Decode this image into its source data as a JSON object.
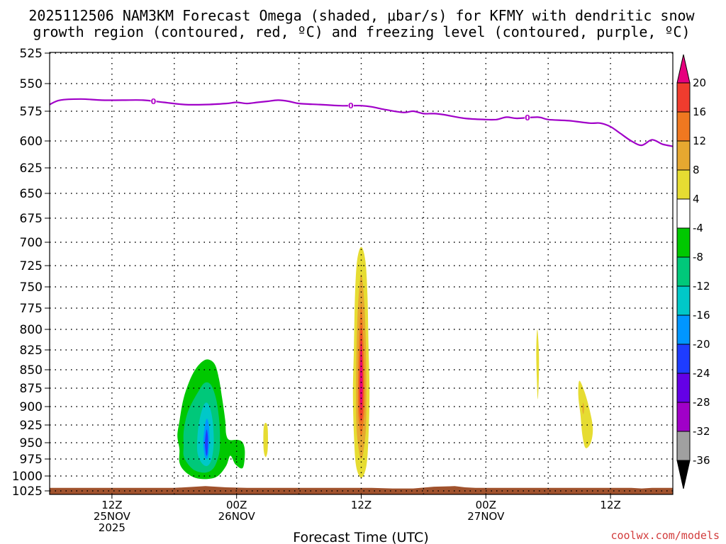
{
  "chart_data": {
    "type": "contour",
    "title_line1": "2025112506 NAM3KM Forecast Omega (shaded, μbar/s) for KFMY with dendritic snow",
    "title_line2": "growth region (contoured, red, ºC) and freezing level (contoured, purple, ºC)",
    "xlabel": "Forecast Time (UTC)",
    "credit": "coolwx.com/models",
    "x_hours": [
      0,
      60
    ],
    "y_levels": [
      525,
      550,
      575,
      600,
      625,
      650,
      675,
      700,
      725,
      750,
      775,
      800,
      825,
      850,
      875,
      900,
      925,
      950,
      975,
      1000,
      1025
    ],
    "x_ticks": [
      {
        "hour": 6,
        "lines": [
          "12Z",
          "25NOV",
          "2025"
        ]
      },
      {
        "hour": 18,
        "lines": [
          "00Z",
          "26NOV"
        ]
      },
      {
        "hour": 30,
        "lines": [
          "12Z"
        ]
      },
      {
        "hour": 42,
        "lines": [
          "00Z",
          "27NOV"
        ]
      },
      {
        "hour": 54,
        "lines": [
          "12Z"
        ]
      }
    ],
    "colorbar": {
      "labels": [
        "20",
        "16",
        "12",
        "8",
        "4",
        "-4",
        "-8",
        "-12",
        "-16",
        "-20",
        "-24",
        "-28",
        "-32",
        "-36"
      ],
      "colors": [
        "#e6007e",
        "#f03c2e",
        "#f07820",
        "#e6a830",
        "#e6dc32",
        "#ffffff",
        "#00c800",
        "#00c87a",
        "#00c8c8",
        "#0096ff",
        "#1e3cff",
        "#6400e6",
        "#a000c8",
        "#a0a0a0"
      ]
    },
    "freezing_level": {
      "label": "0",
      "label_hours": [
        10,
        29,
        46
      ],
      "points": [
        [
          0,
          569
        ],
        [
          1,
          565
        ],
        [
          3,
          564
        ],
        [
          5,
          565
        ],
        [
          7,
          565
        ],
        [
          9,
          565
        ],
        [
          11,
          567
        ],
        [
          13,
          569
        ],
        [
          15,
          569
        ],
        [
          17,
          568
        ],
        [
          18,
          567
        ],
        [
          19,
          568
        ],
        [
          20,
          567
        ],
        [
          21,
          566
        ],
        [
          22,
          565
        ],
        [
          23,
          566
        ],
        [
          24,
          568
        ],
        [
          26,
          569
        ],
        [
          28,
          570
        ],
        [
          29,
          570
        ],
        [
          30,
          570
        ],
        [
          31,
          571
        ],
        [
          32,
          573
        ],
        [
          34,
          576
        ],
        [
          35,
          575
        ],
        [
          36,
          577
        ],
        [
          37,
          577
        ],
        [
          38,
          578
        ],
        [
          40,
          581
        ],
        [
          42,
          582
        ],
        [
          43,
          582
        ],
        [
          44,
          580
        ],
        [
          45,
          581
        ],
        [
          47,
          580
        ],
        [
          48,
          582
        ],
        [
          50,
          583
        ],
        [
          52,
          585
        ],
        [
          53,
          585
        ],
        [
          54,
          588
        ],
        [
          55,
          594
        ],
        [
          56,
          600
        ],
        [
          57,
          604
        ],
        [
          58,
          599
        ],
        [
          59,
          603
        ],
        [
          60,
          605
        ]
      ]
    },
    "terrain_pressure": [
      [
        0,
        1020
      ],
      [
        12,
        1020
      ],
      [
        15,
        1017
      ],
      [
        17,
        1019
      ],
      [
        19,
        1020
      ],
      [
        31,
        1020
      ],
      [
        33,
        1021
      ],
      [
        35,
        1021
      ],
      [
        37,
        1018
      ],
      [
        39,
        1017
      ],
      [
        40,
        1019
      ],
      [
        41,
        1020
      ],
      [
        56,
        1020
      ],
      [
        57,
        1021
      ],
      [
        58,
        1020
      ],
      [
        60,
        1020
      ]
    ],
    "shades": [
      {
        "name": "neg-green",
        "color": "#00c800",
        "points": [
          [
            12.5,
            960
          ],
          [
            12.3,
            940
          ],
          [
            12.5,
            920
          ],
          [
            12.8,
            895
          ],
          [
            13.2,
            875
          ],
          [
            13.8,
            855
          ],
          [
            14.5,
            842
          ],
          [
            15.2,
            837
          ],
          [
            15.9,
            843
          ],
          [
            16.3,
            862
          ],
          [
            16.6,
            888
          ],
          [
            16.9,
            918
          ],
          [
            17.0,
            938
          ],
          [
            17.3,
            946
          ],
          [
            18.1,
            946
          ],
          [
            18.6,
            950
          ],
          [
            18.8,
            965
          ],
          [
            18.6,
            988
          ],
          [
            17.9,
            983
          ],
          [
            17.4,
            970
          ],
          [
            17.0,
            985
          ],
          [
            16.2,
            1000
          ],
          [
            15.2,
            1005
          ],
          [
            14.0,
            1003
          ],
          [
            13.0,
            993
          ],
          [
            12.5,
            980
          ]
        ]
      },
      {
        "name": "neg-teal",
        "color": "#00c87a",
        "points": [
          [
            12.9,
            955
          ],
          [
            12.9,
            935
          ],
          [
            13.2,
            912
          ],
          [
            13.7,
            895
          ],
          [
            14.3,
            880
          ],
          [
            14.9,
            868
          ],
          [
            15.5,
            870
          ],
          [
            16.0,
            888
          ],
          [
            16.3,
            915
          ],
          [
            16.4,
            945
          ],
          [
            16.3,
            968
          ],
          [
            15.8,
            988
          ],
          [
            15.0,
            995
          ],
          [
            14.0,
            992
          ],
          [
            13.3,
            982
          ],
          [
            12.9,
            970
          ]
        ]
      },
      {
        "name": "neg-cyan",
        "color": "#00c8c8",
        "points": [
          [
            14.2,
            955
          ],
          [
            14.3,
            930
          ],
          [
            14.6,
            908
          ],
          [
            15.0,
            895
          ],
          [
            15.4,
            900
          ],
          [
            15.7,
            920
          ],
          [
            15.8,
            950
          ],
          [
            15.6,
            975
          ],
          [
            15.2,
            985
          ],
          [
            14.7,
            982
          ],
          [
            14.3,
            970
          ]
        ]
      },
      {
        "name": "neg-lightblue",
        "color": "#0096ff",
        "points": [
          [
            14.8,
            950
          ],
          [
            14.9,
            930
          ],
          [
            15.1,
            917
          ],
          [
            15.3,
            922
          ],
          [
            15.4,
            945
          ],
          [
            15.3,
            968
          ],
          [
            15.1,
            975
          ],
          [
            14.9,
            968
          ]
        ]
      },
      {
        "name": "neg-blue",
        "color": "#1e3cff",
        "points": [
          [
            14.95,
            950
          ],
          [
            15.05,
            935
          ],
          [
            15.15,
            932
          ],
          [
            15.25,
            945
          ],
          [
            15.2,
            965
          ],
          [
            15.1,
            970
          ],
          [
            15.0,
            962
          ]
        ]
      },
      {
        "name": "pos-yellow-main",
        "color": "#e6dc32",
        "points": [
          [
            30.0,
            705
          ],
          [
            30.4,
            720
          ],
          [
            30.6,
            760
          ],
          [
            30.7,
            820
          ],
          [
            30.8,
            880
          ],
          [
            30.7,
            940
          ],
          [
            30.5,
            985
          ],
          [
            30.0,
            1003
          ],
          [
            29.5,
            985
          ],
          [
            29.3,
            940
          ],
          [
            29.2,
            880
          ],
          [
            29.3,
            820
          ],
          [
            29.4,
            760
          ],
          [
            29.6,
            720
          ]
        ]
      },
      {
        "name": "pos-gold",
        "color": "#e6a830",
        "points": [
          [
            30.0,
            735
          ],
          [
            30.3,
            770
          ],
          [
            30.45,
            820
          ],
          [
            30.5,
            880
          ],
          [
            30.45,
            930
          ],
          [
            30.2,
            965
          ],
          [
            30.0,
            975
          ],
          [
            29.8,
            965
          ],
          [
            29.55,
            930
          ],
          [
            29.5,
            880
          ],
          [
            29.55,
            820
          ],
          [
            29.7,
            770
          ]
        ]
      },
      {
        "name": "pos-orange",
        "color": "#f07820",
        "points": [
          [
            30.0,
            770
          ],
          [
            30.2,
            810
          ],
          [
            30.3,
            860
          ],
          [
            30.3,
            905
          ],
          [
            30.1,
            935
          ],
          [
            30.0,
            940
          ],
          [
            29.9,
            935
          ],
          [
            29.7,
            905
          ],
          [
            29.7,
            860
          ],
          [
            29.8,
            810
          ]
        ]
      },
      {
        "name": "pos-red",
        "color": "#f03c2e",
        "points": [
          [
            30.0,
            795
          ],
          [
            30.15,
            840
          ],
          [
            30.2,
            880
          ],
          [
            30.15,
            910
          ],
          [
            30.0,
            920
          ],
          [
            29.85,
            910
          ],
          [
            29.8,
            880
          ],
          [
            29.85,
            840
          ]
        ]
      },
      {
        "name": "pos-magenta",
        "color": "#e6007e",
        "points": [
          [
            30.0,
            815
          ],
          [
            30.1,
            850
          ],
          [
            30.12,
            880
          ],
          [
            30.05,
            900
          ],
          [
            29.95,
            900
          ],
          [
            29.88,
            880
          ],
          [
            29.9,
            850
          ]
        ]
      },
      {
        "name": "pos-yellow-small1",
        "color": "#e6dc32",
        "points": [
          [
            20.8,
            922
          ],
          [
            21.0,
            930
          ],
          [
            21.0,
            960
          ],
          [
            20.8,
            972
          ],
          [
            20.6,
            960
          ],
          [
            20.6,
            930
          ]
        ]
      },
      {
        "name": "pos-yellow-small2",
        "color": "#e6dc32",
        "points": [
          [
            46.95,
            800
          ],
          [
            47.1,
            825
          ],
          [
            47.1,
            860
          ],
          [
            47.0,
            890
          ],
          [
            46.9,
            860
          ],
          [
            46.85,
            825
          ]
        ]
      },
      {
        "name": "pos-yellow-small3",
        "color": "#e6dc32",
        "points": [
          [
            51.0,
            865
          ],
          [
            51.5,
            880
          ],
          [
            52.0,
            905
          ],
          [
            52.3,
            930
          ],
          [
            52.1,
            950
          ],
          [
            51.6,
            958
          ],
          [
            51.3,
            940
          ],
          [
            51.1,
            910
          ],
          [
            50.9,
            885
          ]
        ]
      },
      {
        "name": "pos-gold-small3",
        "color": "#e6a830",
        "points": [
          [
            51.35,
            895
          ],
          [
            51.45,
            900
          ],
          [
            51.4,
            910
          ],
          [
            51.3,
            905
          ]
        ]
      }
    ]
  }
}
